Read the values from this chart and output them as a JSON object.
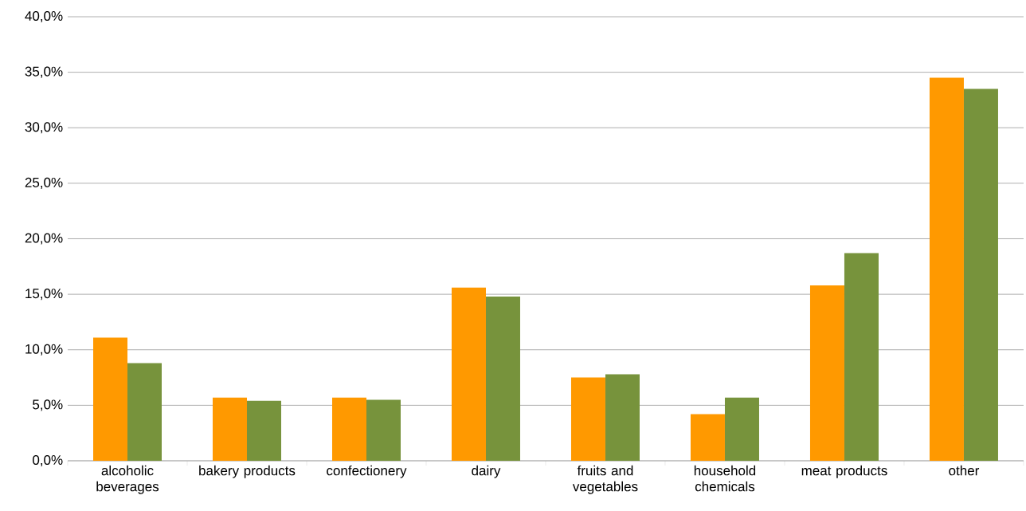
{
  "chart_data": {
    "type": "bar",
    "categories": [
      "alcoholic beverages",
      "bakery products",
      "confectionery",
      "dairy",
      "fruits and vegetables",
      "household chemicals",
      "meat products",
      "other"
    ],
    "series": [
      {
        "color": "#ff9900",
        "values": [
          11.1,
          5.7,
          5.7,
          15.6,
          7.5,
          4.2,
          15.8,
          34.5
        ]
      },
      {
        "color": "#77933c",
        "values": [
          8.8,
          5.4,
          5.5,
          14.8,
          7.8,
          5.7,
          18.7,
          33.5
        ]
      }
    ],
    "ylim": [
      0,
      40
    ],
    "yticks": [
      {
        "value": 0,
        "label": "0,0%"
      },
      {
        "value": 5,
        "label": "5,0%"
      },
      {
        "value": 10,
        "label": "10,0%"
      },
      {
        "value": 15,
        "label": "15,0%"
      },
      {
        "value": 20,
        "label": "20,0%"
      },
      {
        "value": 25,
        "label": "25,0%"
      },
      {
        "value": 30,
        "label": "30,0%"
      },
      {
        "value": 35,
        "label": "35,0%"
      },
      {
        "value": 40,
        "label": "40,0%"
      }
    ],
    "grid": "y"
  }
}
